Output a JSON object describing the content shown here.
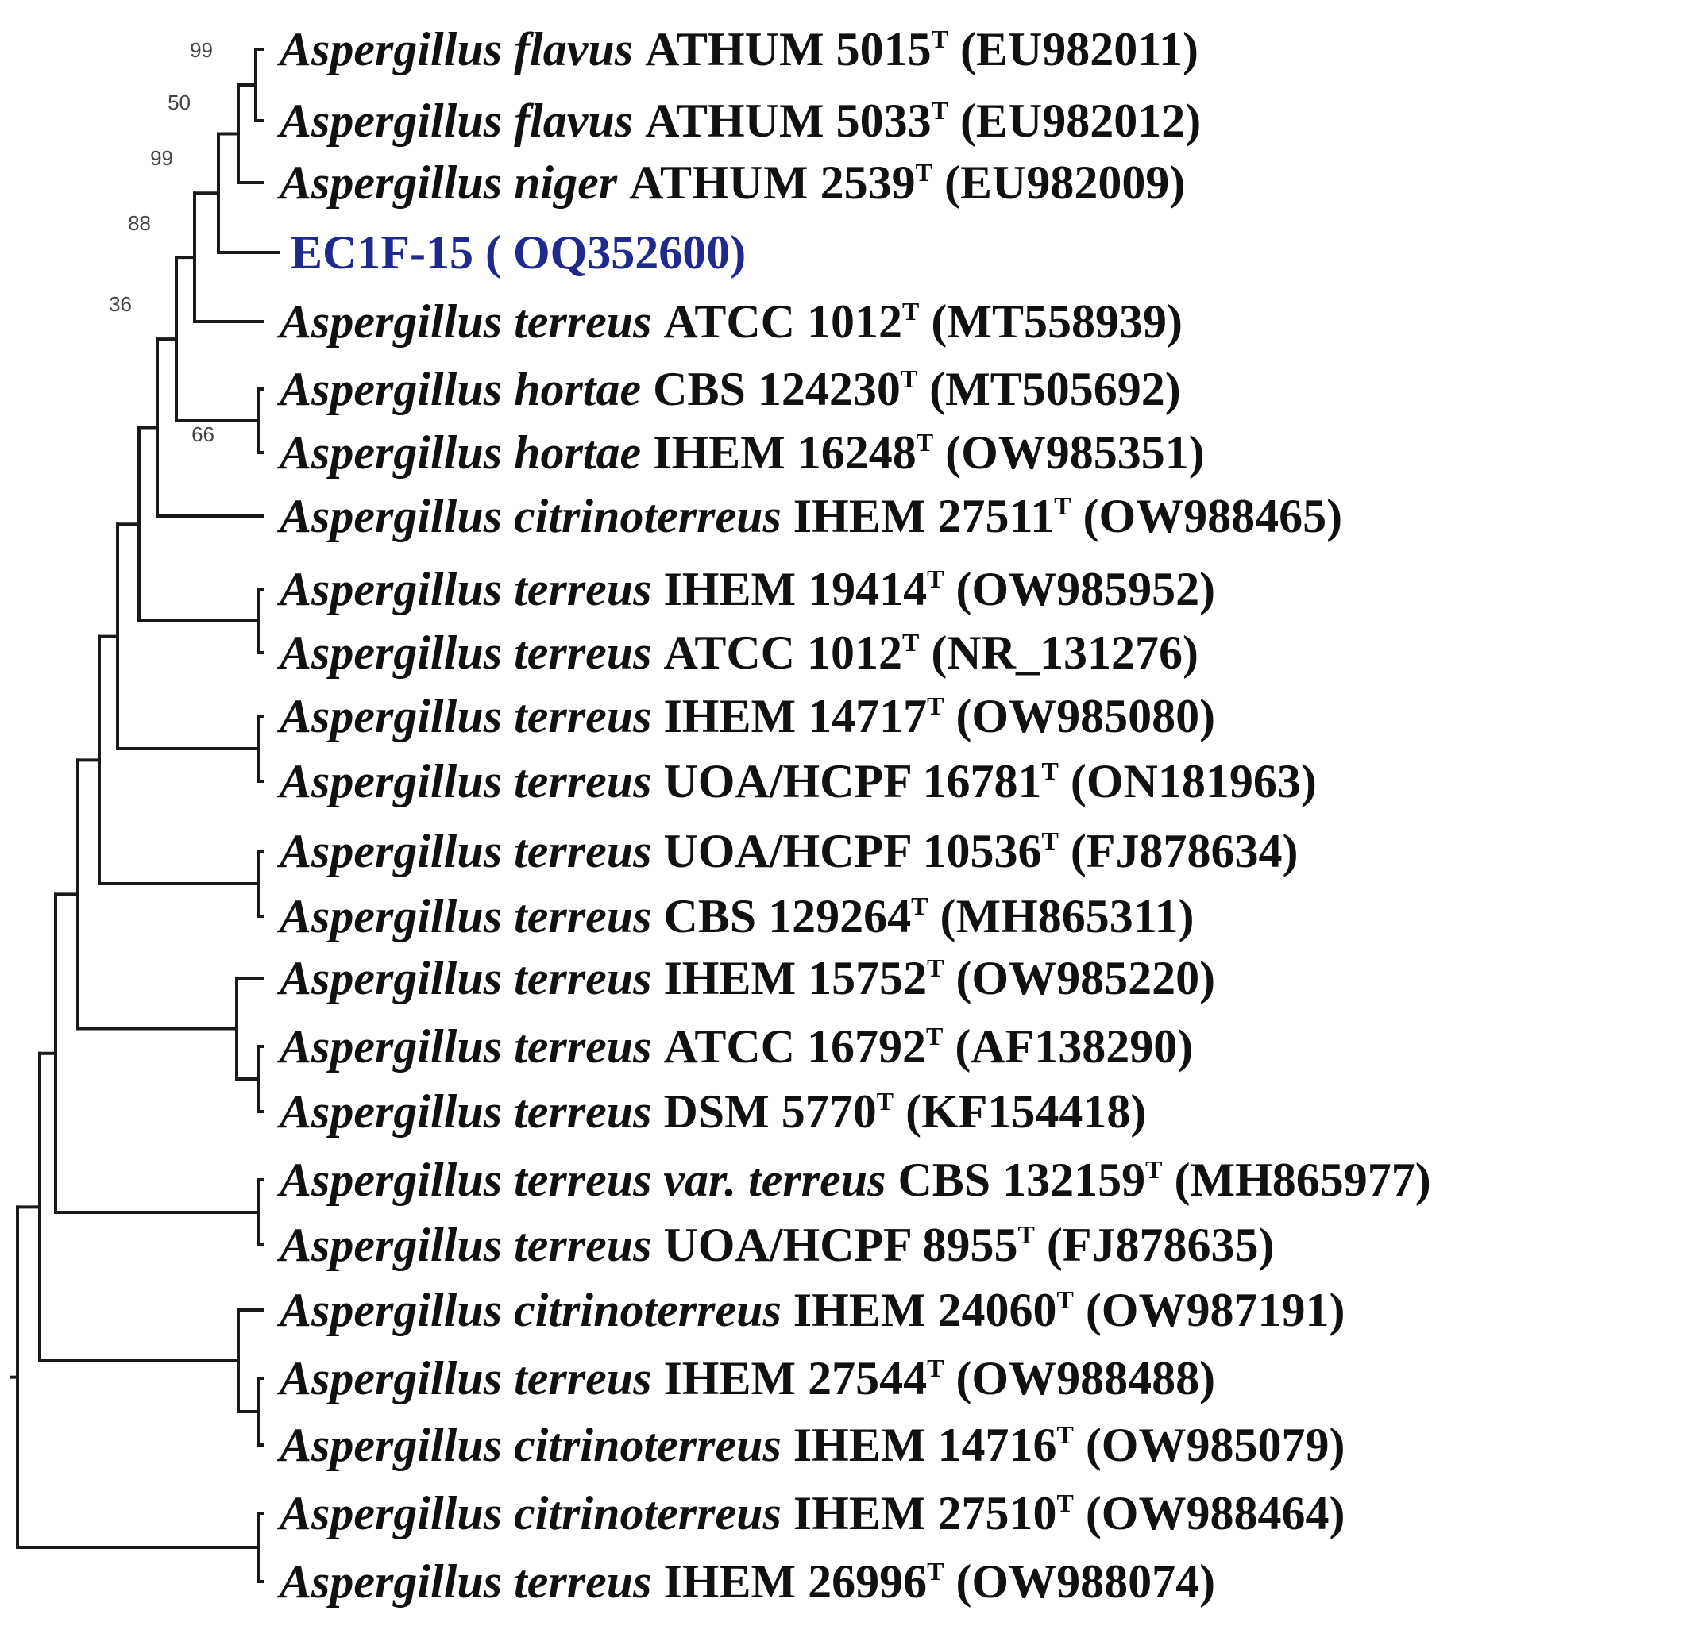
{
  "leaves": [
    {
      "id": "L1",
      "species": "Aspergillus flavus",
      "strain": "ATHUM 5015",
      "type": "T",
      "accession": "(EU982011)"
    },
    {
      "id": "L2",
      "species": "Aspergillus flavus",
      "strain": "ATHUM 5033",
      "type": "T",
      "accession": "(EU982012)"
    },
    {
      "id": "L3",
      "species": "Aspergillus niger",
      "strain": "ATHUM 2539",
      "type": "T",
      "accession": "(EU982009)"
    },
    {
      "id": "L4",
      "species": "",
      "strain": "EC1F-15 ( OQ352600)",
      "type": "",
      "accession": "",
      "highlight": true
    },
    {
      "id": "L5",
      "species": "Aspergillus terreus",
      "strain": "ATCC 1012",
      "type": "T",
      "accession": "(MT558939)"
    },
    {
      "id": "L6",
      "species": "Aspergillus hortae",
      "strain": "CBS 124230",
      "type": "T",
      "accession": "(MT505692)"
    },
    {
      "id": "L7",
      "species": "Aspergillus hortae",
      "strain": "IHEM 16248",
      "type": "T",
      "accession": "(OW985351)"
    },
    {
      "id": "L8",
      "species": "Aspergillus citrinoterreus",
      "strain": "IHEM 27511",
      "type": "T",
      "accession": "(OW988465)"
    },
    {
      "id": "L9",
      "species": "Aspergillus terreus",
      "strain": "IHEM 19414",
      "type": "T",
      "accession": "(OW985952)"
    },
    {
      "id": "L10",
      "species": "Aspergillus terreus",
      "strain": "ATCC 1012",
      "type": "T",
      "accession": "(NR_131276)"
    },
    {
      "id": "L11",
      "species": "Aspergillus terreus",
      "strain": "IHEM 14717",
      "type": "T",
      "accession": "(OW985080)"
    },
    {
      "id": "L12",
      "species": "Aspergillus terreus",
      "strain": "UOA/HCPF 16781",
      "type": "T",
      "accession": "(ON181963)"
    },
    {
      "id": "L13",
      "species": "Aspergillus terreus",
      "strain": "UOA/HCPF 10536",
      "type": "T",
      "accession": "(FJ878634)"
    },
    {
      "id": "L14",
      "species": "Aspergillus terreus",
      "strain": "CBS 129264",
      "type": "T",
      "accession": "(MH865311)"
    },
    {
      "id": "L15",
      "species": "Aspergillus terreus",
      "strain": "IHEM 15752",
      "type": "T",
      "accession": "(OW985220)"
    },
    {
      "id": "L16",
      "species": "Aspergillus terreus",
      "strain": "ATCC 16792",
      "type": "T",
      "accession": "(AF138290)"
    },
    {
      "id": "L17",
      "species": "Aspergillus terreus",
      "strain": "DSM 5770",
      "type": "T",
      "accession": "(KF154418)"
    },
    {
      "id": "L18",
      "species": "Aspergillus terreus var. terreus",
      "strain": " CBS 132159",
      "type": "T",
      "accession": "(MH865977)"
    },
    {
      "id": "L19",
      "species": "Aspergillus terreus",
      "strain": "UOA/HCPF 8955",
      "type": "T",
      "accession": "(FJ878635)"
    },
    {
      "id": "L20",
      "species": "Aspergillus citrinoterreus",
      "strain": "IHEM 24060",
      "type": "T",
      "accession": "(OW987191)"
    },
    {
      "id": "L21",
      "species": "Aspergillus terreus",
      "strain": "IHEM 27544",
      "type": "T",
      "accession": "(OW988488)"
    },
    {
      "id": "L22",
      "species": "Aspergillus citrinoterreus",
      "strain": "IHEM 14716",
      "type": "T",
      "accession": "(OW985079)"
    },
    {
      "id": "L23",
      "species": "Aspergillus citrinoterreus",
      "strain": "IHEM 27510",
      "type": "T",
      "accession": "(OW988464)"
    },
    {
      "id": "L24",
      "species": "Aspergillus terreus",
      "strain": "IHEM 26996",
      "type": "T",
      "accession": "(OW988074)"
    }
  ],
  "clades": [
    {
      "id": "N1",
      "children": [
        "L1",
        "L2"
      ],
      "support": "99"
    },
    {
      "id": "N2",
      "children": [
        "N1",
        "L3"
      ],
      "support": "50"
    },
    {
      "id": "N3",
      "children": [
        "N2",
        "L4"
      ],
      "support": "99"
    },
    {
      "id": "N4",
      "children": [
        "N3",
        "L5"
      ],
      "support": "88"
    },
    {
      "id": "N5",
      "children": [
        "L6",
        "L7"
      ],
      "support": "66"
    },
    {
      "id": "N6",
      "children": [
        "N4",
        "N5"
      ],
      "support": "36"
    },
    {
      "id": "N7",
      "children": [
        "N6",
        "L8"
      ],
      "support": ""
    },
    {
      "id": "N8",
      "children": [
        "L9",
        "L10"
      ],
      "support": ""
    },
    {
      "id": "N9",
      "children": [
        "N7",
        "N8"
      ],
      "support": ""
    },
    {
      "id": "N10",
      "children": [
        "L11",
        "L12"
      ],
      "support": ""
    },
    {
      "id": "N11",
      "children": [
        "N9",
        "N10"
      ],
      "support": ""
    },
    {
      "id": "N12",
      "children": [
        "L13",
        "L14"
      ],
      "support": ""
    },
    {
      "id": "N13",
      "children": [
        "N11",
        "N12"
      ],
      "support": ""
    },
    {
      "id": "N14",
      "children": [
        "L16",
        "L17"
      ],
      "support": ""
    },
    {
      "id": "N15",
      "children": [
        "L15",
        "N14"
      ],
      "support": ""
    },
    {
      "id": "N16",
      "children": [
        "N13",
        "N15"
      ],
      "support": ""
    },
    {
      "id": "N17",
      "children": [
        "L18",
        "L19"
      ],
      "support": ""
    },
    {
      "id": "N18",
      "children": [
        "N16",
        "N17"
      ],
      "support": ""
    },
    {
      "id": "N19",
      "children": [
        "L21",
        "L22"
      ],
      "support": ""
    },
    {
      "id": "N20",
      "children": [
        "L20",
        "N19"
      ],
      "support": ""
    },
    {
      "id": "N21",
      "children": [
        "N18",
        "N20"
      ],
      "support": ""
    },
    {
      "id": "N22",
      "children": [
        "L23",
        "L24"
      ],
      "support": ""
    },
    {
      "id": "N23",
      "children": [
        "N21",
        "N22"
      ],
      "support": ""
    }
  ],
  "root": "N23",
  "colors": {
    "branch": "#1a1a1a",
    "label": "#111111",
    "highlight": "#1f2a8c",
    "support": "#444444"
  }
}
